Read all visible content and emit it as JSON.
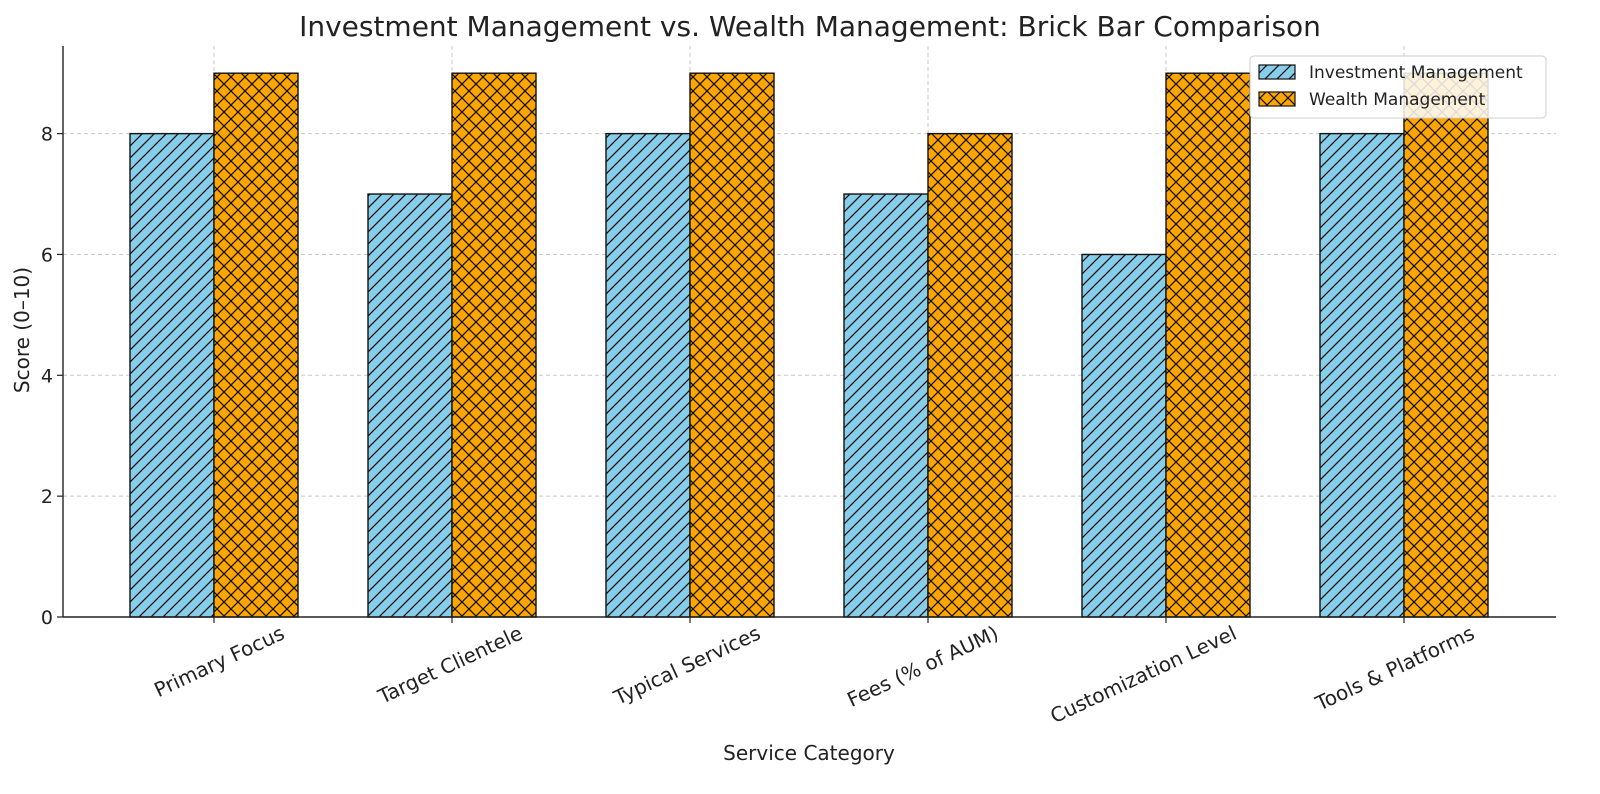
{
  "chart_data": {
    "type": "bar",
    "title": "Investment Management vs. Wealth Management: Brick Bar Comparison",
    "xlabel": "Service Category",
    "ylabel": "Score (0–10)",
    "categories": [
      "Primary Focus",
      "Target Clientele",
      "Typical Services",
      "Fees (% of AUM)",
      "Customization Level",
      "Tools & Platforms"
    ],
    "series": [
      {
        "name": "Investment Management",
        "values": [
          8,
          7,
          8,
          7,
          6,
          8
        ],
        "color": "#87ceeb",
        "hatch": "diagonal"
      },
      {
        "name": "Wealth Management",
        "values": [
          9,
          9,
          9,
          8,
          9,
          9
        ],
        "color": "#ffa500",
        "hatch": "crosshatch"
      }
    ],
    "ylim": [
      0,
      9.45
    ],
    "yticks": [
      0,
      2,
      4,
      6,
      8
    ],
    "grid": true,
    "legend_position": "top-right"
  }
}
